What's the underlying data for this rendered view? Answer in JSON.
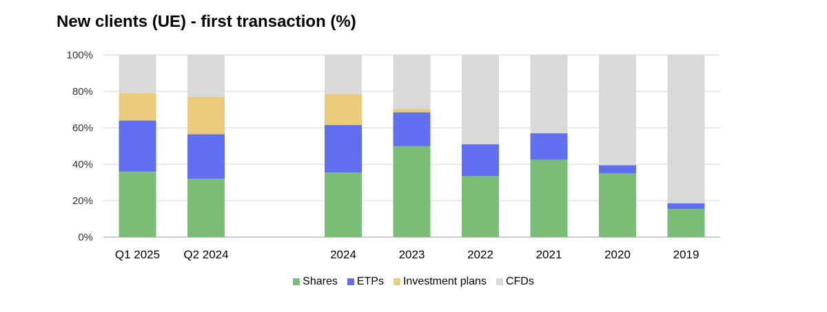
{
  "chart_data": {
    "type": "bar",
    "stacked": true,
    "title": "New clients (UE) - first transaction (%)",
    "xlabel": "",
    "ylabel": "",
    "ylim": [
      0,
      100
    ],
    "yticks": [
      "0%",
      "20%",
      "40%",
      "60%",
      "80%",
      "100%"
    ],
    "grid": true,
    "legend_position": "bottom",
    "categories": [
      "Q1 2025",
      "Q2 2024",
      "",
      "2024",
      "2023",
      "2022",
      "2021",
      "2020",
      "2019"
    ],
    "series": [
      {
        "name": "Shares",
        "color": "#7abd76",
        "values": [
          36,
          32,
          null,
          35.5,
          50,
          33.5,
          42.5,
          35,
          15.5
        ]
      },
      {
        "name": "ETPs",
        "color": "#5f6fef",
        "values": [
          28,
          24.5,
          null,
          26,
          18.5,
          17.5,
          14.5,
          4.5,
          3
        ]
      },
      {
        "name": "Investment plans",
        "color": "#e9cb7a",
        "values": [
          15,
          20.5,
          null,
          17,
          2,
          0,
          0,
          0,
          0
        ]
      },
      {
        "name": "CFDs",
        "color": "#d9d9d9",
        "values": [
          21,
          23,
          null,
          21.5,
          29.5,
          49,
          43,
          60.5,
          81.5
        ]
      }
    ]
  }
}
